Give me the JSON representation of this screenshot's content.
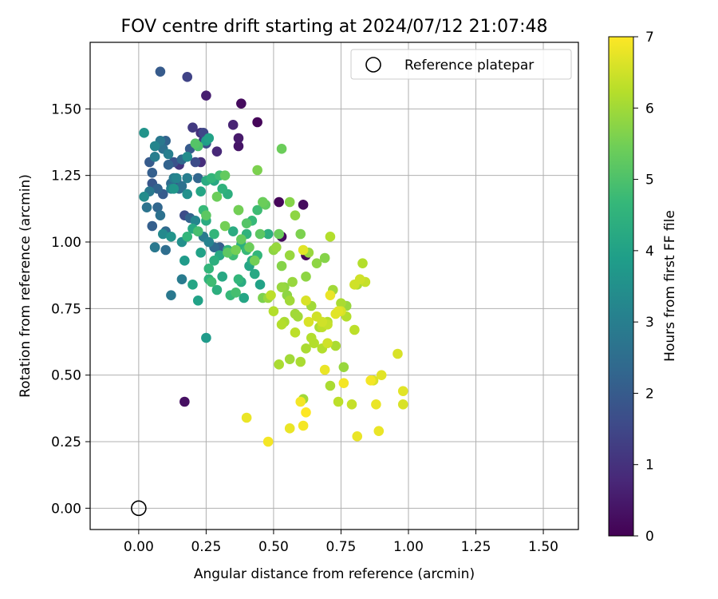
{
  "chart_data": {
    "type": "scatter",
    "title": "FOV centre drift starting at 2024/07/12 21:07:48",
    "xlabel": "Angular distance from reference (arcmin)",
    "ylabel": "Rotation from reference (arcmin)",
    "xlim": [
      -0.18,
      1.63
    ],
    "ylim": [
      -0.08,
      1.75
    ],
    "xticks": [
      "0.00",
      "0.25",
      "0.50",
      "0.75",
      "1.00",
      "1.25",
      "1.50"
    ],
    "yticks": [
      "0.00",
      "0.25",
      "0.50",
      "0.75",
      "1.00",
      "1.25",
      "1.50"
    ],
    "grid": true,
    "legend": {
      "position": "top-right",
      "entries": [
        {
          "label": "Reference platepar",
          "marker": "open-circle"
        }
      ]
    },
    "reference_point": {
      "x": 0.0,
      "y": 0.0
    },
    "colorbar": {
      "label": "Hours from first FF file",
      "range": [
        0,
        7
      ],
      "ticks": [
        "0",
        "1",
        "2",
        "3",
        "4",
        "5",
        "6",
        "7"
      ],
      "colormap": "viridis"
    },
    "colormap_stops": [
      "#440154",
      "#482878",
      "#3e4a89",
      "#31688e",
      "#26828e",
      "#1f9e89",
      "#35b779",
      "#6ece58",
      "#b5de2b",
      "#fde725"
    ],
    "series": [
      {
        "x": [
          0.08,
          0.18,
          0.25,
          0.38,
          0.35,
          0.44,
          0.37,
          0.37,
          0.29,
          0.52,
          0.53,
          0.61,
          0.62,
          0.17,
          0.2,
          0.23,
          0.24,
          0.24,
          0.25,
          0.15,
          0.23
        ],
        "y": [
          1.64,
          1.62,
          1.55,
          1.52,
          1.44,
          1.45,
          1.39,
          1.36,
          1.34,
          1.15,
          1.02,
          1.14,
          0.95,
          0.4,
          1.43,
          1.41,
          1.38,
          1.41,
          1.37,
          1.29,
          1.3
        ],
        "h": [
          2.0,
          1.4,
          0.6,
          0.2,
          0.7,
          0.1,
          0.5,
          0.4,
          0.8,
          0.1,
          0.2,
          0.2,
          0.1,
          0.3,
          1.2,
          1.0,
          1.3,
          1.5,
          1.7,
          1.1,
          0.9
        ]
      },
      {
        "x": [
          0.02,
          0.08,
          0.1,
          0.06,
          0.09,
          0.11,
          0.13,
          0.16,
          0.18,
          0.19,
          0.21,
          0.04,
          0.06,
          0.11,
          0.12,
          0.14,
          0.16,
          0.18,
          0.02,
          0.04,
          0.07,
          0.09,
          0.12,
          0.13,
          0.15,
          0.05,
          0.07,
          0.03,
          0.05,
          0.1,
          0.08,
          0.06,
          0.17,
          0.19,
          0.21,
          0.22,
          0.24,
          0.26,
          0.28,
          0.22,
          0.3,
          0.06,
          0.1,
          0.12,
          0.16,
          0.17,
          0.16,
          0.12,
          0.09,
          0.13,
          0.05,
          0.14,
          0.18
        ],
        "y": [
          1.41,
          1.38,
          1.38,
          1.36,
          1.35,
          1.33,
          1.3,
          1.31,
          1.32,
          1.35,
          1.3,
          1.3,
          1.32,
          1.29,
          1.22,
          1.23,
          1.21,
          1.24,
          1.17,
          1.19,
          1.2,
          1.18,
          1.2,
          1.24,
          1.2,
          1.22,
          1.13,
          1.13,
          1.06,
          1.04,
          1.1,
          0.98,
          1.1,
          1.09,
          1.08,
          1.04,
          1.02,
          1.0,
          0.98,
          1.24,
          0.98,
          0.98,
          0.97,
          0.8,
          0.86,
          0.93,
          1.0,
          1.02,
          1.03,
          1.2,
          1.26,
          1.24,
          1.18
        ],
        "h": [
          3.6,
          2.8,
          2.2,
          3.2,
          2.6,
          3.0,
          1.8,
          2.4,
          3.4,
          2.0,
          1.6,
          2.0,
          3.0,
          2.2,
          2.4,
          1.8,
          2.6,
          3.0,
          3.4,
          2.8,
          2.2,
          2.0,
          3.1,
          2.9,
          2.5,
          1.9,
          2.3,
          2.7,
          2.1,
          2.4,
          2.6,
          2.8,
          1.6,
          2.2,
          3.2,
          2.0,
          2.9,
          3.1,
          2.4,
          2.3,
          2.1,
          2.6,
          2.5,
          2.8,
          2.9,
          3.8,
          3.5,
          3.6,
          3.3,
          3.7,
          2.1,
          3.2,
          3.5
        ]
      },
      {
        "x": [
          0.25,
          0.26,
          0.25,
          0.27,
          0.28,
          0.3,
          0.31,
          0.33,
          0.23,
          0.24,
          0.25,
          0.22,
          0.2,
          0.18,
          0.23,
          0.26,
          0.27,
          0.29,
          0.31,
          0.34,
          0.36,
          0.38,
          0.39,
          0.37,
          0.35,
          0.33,
          0.3,
          0.28,
          0.25,
          0.22,
          0.2,
          0.26,
          0.4,
          0.42,
          0.44,
          0.45,
          0.43,
          0.41,
          0.38,
          0.4,
          0.42,
          0.44,
          0.46,
          0.48,
          0.35,
          0.28,
          0.37
        ],
        "y": [
          1.38,
          1.39,
          1.23,
          1.24,
          1.23,
          1.25,
          1.2,
          1.18,
          1.19,
          1.12,
          1.08,
          1.04,
          1.05,
          1.02,
          0.96,
          0.86,
          0.85,
          0.82,
          0.87,
          0.8,
          0.81,
          0.85,
          0.79,
          0.86,
          0.95,
          0.97,
          0.95,
          0.93,
          0.64,
          0.78,
          0.84,
          0.9,
          0.97,
          0.93,
          0.95,
          0.84,
          0.88,
          0.91,
          0.99,
          1.03,
          1.08,
          1.12,
          1.15,
          1.03,
          1.04,
          1.03,
          1.12
        ],
        "h": [
          3.9,
          4.0,
          4.3,
          4.6,
          4.2,
          4.8,
          4.5,
          4.4,
          4.1,
          4.7,
          4.3,
          4.9,
          4.2,
          4.6,
          4.0,
          4.5,
          4.8,
          4.4,
          4.2,
          4.7,
          4.9,
          4.3,
          4.1,
          4.6,
          4.8,
          4.5,
          4.2,
          4.4,
          3.8,
          4.0,
          4.1,
          4.6,
          4.7,
          4.3,
          4.6,
          4.0,
          4.2,
          4.1,
          4.4,
          4.5,
          4.7,
          4.8,
          4.9,
          4.4,
          4.3,
          4.6,
          4.9
        ]
      },
      {
        "x": [
          0.25,
          0.29,
          0.32,
          0.37,
          0.4,
          0.41,
          0.36,
          0.33,
          0.21,
          0.22,
          0.44,
          0.46,
          0.47,
          0.51,
          0.53,
          0.56,
          0.58,
          0.6,
          0.63,
          0.66,
          0.69,
          0.71,
          0.54,
          0.57,
          0.62,
          0.64,
          0.67,
          0.7,
          0.72,
          0.75,
          0.77,
          0.58,
          0.54,
          0.5,
          0.48,
          0.56,
          0.52,
          0.53,
          0.49,
          0.6,
          0.68,
          0.73,
          0.76,
          0.8,
          0.83,
          0.81,
          0.79,
          0.74,
          0.77,
          0.56,
          0.58,
          0.65,
          0.68,
          0.62,
          0.64,
          0.7,
          0.71,
          0.61,
          0.59,
          0.55,
          0.53,
          0.5,
          0.56,
          0.53,
          0.46,
          0.43,
          0.38,
          0.45,
          0.52,
          0.32
        ],
        "y": [
          1.1,
          1.17,
          1.25,
          1.12,
          1.07,
          0.98,
          0.97,
          0.96,
          1.37,
          1.36,
          1.27,
          1.15,
          1.14,
          0.98,
          1.35,
          1.15,
          1.1,
          1.03,
          0.96,
          0.92,
          0.94,
          1.02,
          0.83,
          0.85,
          0.87,
          0.76,
          0.68,
          0.7,
          0.82,
          0.77,
          0.76,
          0.73,
          0.7,
          0.74,
          0.79,
          0.56,
          0.54,
          0.69,
          0.8,
          0.55,
          0.6,
          0.61,
          0.53,
          0.67,
          0.92,
          0.84,
          0.39,
          0.4,
          0.72,
          0.78,
          0.66,
          0.62,
          0.68,
          0.6,
          0.64,
          0.69,
          0.46,
          0.41,
          0.72,
          0.8,
          0.83,
          0.97,
          0.95,
          0.91,
          0.79,
          0.93,
          1.01,
          1.03,
          1.03,
          1.06
        ],
        "h": [
          5.2,
          5.4,
          5.3,
          5.5,
          5.1,
          5.4,
          5.5,
          5.2,
          5.1,
          5.0,
          5.6,
          5.4,
          5.3,
          5.9,
          5.4,
          5.7,
          5.8,
          5.6,
          5.9,
          5.8,
          5.7,
          6.2,
          5.8,
          5.9,
          5.8,
          6.0,
          6.1,
          6.2,
          6.0,
          6.1,
          5.9,
          6.0,
          6.1,
          6.2,
          5.9,
          6.0,
          6.1,
          6.2,
          6.3,
          6.1,
          6.2,
          6.1,
          5.9,
          6.3,
          6.2,
          6.1,
          6.4,
          6.3,
          6.2,
          6.0,
          6.3,
          6.2,
          6.3,
          6.1,
          6.2,
          6.4,
          6.1,
          6.0,
          6.0,
          5.8,
          5.9,
          5.8,
          5.9,
          5.7,
          5.6,
          5.5,
          5.3,
          5.2,
          5.4,
          5.5
        ]
      },
      {
        "x": [
          0.4,
          0.48,
          0.56,
          0.61,
          0.62,
          0.6,
          0.69,
          0.73,
          0.76,
          0.81,
          0.86,
          0.88,
          0.9,
          0.87,
          0.96,
          0.98,
          0.98,
          0.89,
          0.74,
          0.71,
          0.63,
          0.61,
          0.68,
          0.62,
          0.66,
          0.7,
          0.75,
          0.82,
          0.84,
          0.8
        ],
        "y": [
          0.34,
          0.25,
          0.3,
          0.31,
          0.36,
          0.4,
          0.52,
          0.73,
          0.47,
          0.27,
          0.48,
          0.39,
          0.5,
          0.48,
          0.58,
          0.44,
          0.39,
          0.29,
          0.74,
          0.8,
          0.7,
          0.97,
          0.7,
          0.78,
          0.72,
          0.62,
          0.74,
          0.86,
          0.85,
          0.84
        ],
        "h": [
          6.8,
          6.9,
          6.8,
          6.9,
          7.0,
          6.9,
          6.8,
          6.7,
          6.9,
          6.8,
          6.9,
          6.8,
          6.7,
          6.6,
          6.6,
          6.7,
          6.6,
          6.8,
          6.7,
          6.8,
          6.6,
          6.7,
          6.5,
          6.6,
          6.5,
          6.5,
          6.6,
          6.5,
          6.4,
          6.5
        ]
      }
    ]
  }
}
